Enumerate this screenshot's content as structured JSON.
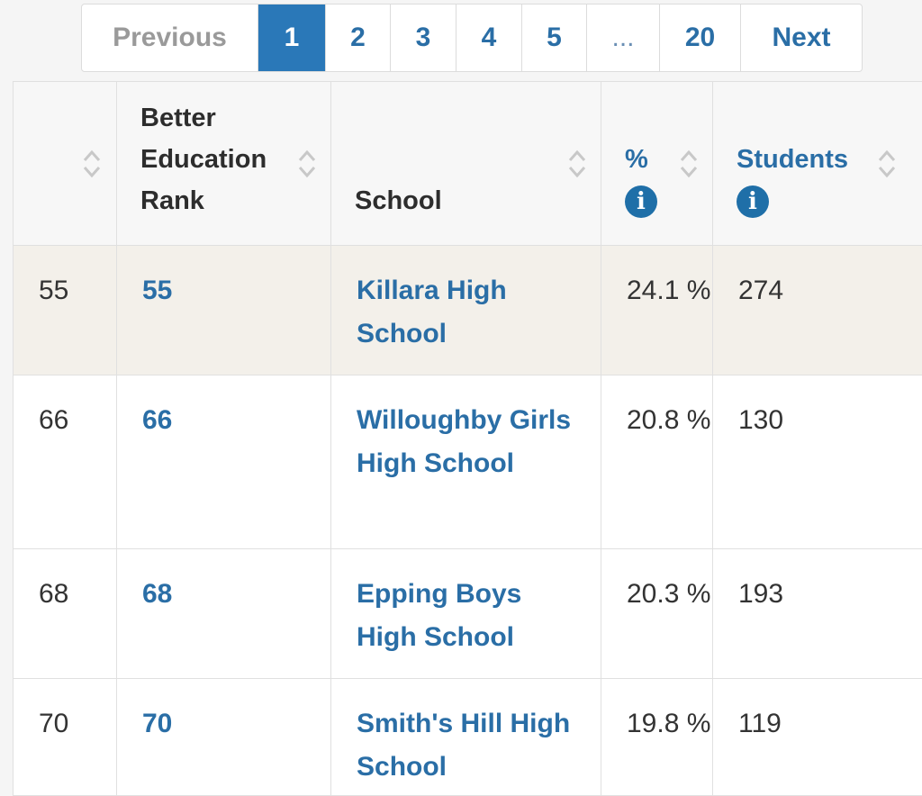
{
  "pagination": {
    "previous": "Previous",
    "pages": [
      "1",
      "2",
      "3",
      "4",
      "5"
    ],
    "ellipsis": "...",
    "last": "20",
    "next": "Next",
    "active": "1"
  },
  "table": {
    "headers": {
      "rank_index": "",
      "better_education_rank": "Better Education Rank",
      "school": "School",
      "percent": "%",
      "students": "Students"
    },
    "rows": [
      {
        "index": "55",
        "rank": "55",
        "school": "Killara High School",
        "percent": "24.1 %",
        "students": "274"
      },
      {
        "index": "66",
        "rank": "66",
        "school": "Willoughby Girls High School",
        "percent": "20.8 %",
        "students": "130"
      },
      {
        "index": "68",
        "rank": "68",
        "school": "Epping Boys High School",
        "percent": "20.3 %",
        "students": "193"
      },
      {
        "index": "70",
        "rank": "70",
        "school": "Smith's Hill High School",
        "percent": "19.8 %",
        "students": "119"
      }
    ]
  },
  "colors": {
    "link": "#2a6ea6",
    "active_page_bg": "#2a78b8",
    "highlight_row_bg": "#f3f0ea",
    "info_icon_bg": "#1f6fa8"
  }
}
